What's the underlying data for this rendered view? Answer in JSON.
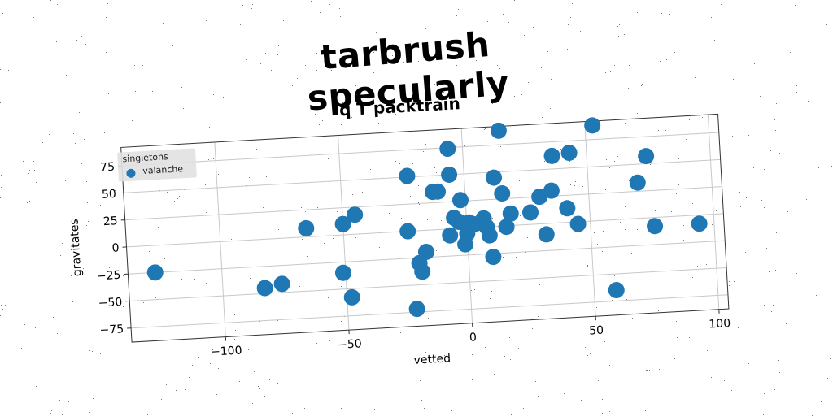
{
  "suptitle": "tarbrush specularly",
  "chart_data": {
    "type": "scatter",
    "title": "q T packtrain",
    "xlabel": "vetted",
    "ylabel": "gravitates",
    "xlim": [
      -138,
      104
    ],
    "ylim": [
      -88,
      92
    ],
    "xticks": [
      -100,
      -50,
      0,
      50,
      100
    ],
    "yticks": [
      -75,
      -50,
      -25,
      0,
      25,
      50,
      75
    ],
    "grid": true,
    "legend_title": "singletons",
    "legend_position": "top-left",
    "color": "#1f77b4",
    "series": [
      {
        "name": "valanche",
        "points": [
          [
            -127,
            -25
          ],
          [
            -83,
            -45
          ],
          [
            -76,
            -42
          ],
          [
            -65,
            8
          ],
          [
            -50,
            10
          ],
          [
            -45,
            18
          ],
          [
            -51,
            -35
          ],
          [
            -48,
            -58
          ],
          [
            -22,
            -72
          ],
          [
            -24,
            0
          ],
          [
            -23,
            51
          ],
          [
            -13,
            35
          ],
          [
            -11,
            35
          ],
          [
            -17,
            -20
          ],
          [
            -20,
            -30
          ],
          [
            -19,
            -38
          ],
          [
            -6,
            74
          ],
          [
            -6,
            50
          ],
          [
            -2,
            26
          ],
          [
            -7,
            -6
          ],
          [
            -5,
            10
          ],
          [
            -3,
            6
          ],
          [
            -1,
            -15
          ],
          [
            0,
            -5
          ],
          [
            1,
            5
          ],
          [
            3,
            3
          ],
          [
            7,
            8
          ],
          [
            8,
            0
          ],
          [
            9,
            -8
          ],
          [
            10,
            -28
          ],
          [
            12,
            45
          ],
          [
            15,
            30
          ],
          [
            16,
            -1
          ],
          [
            18,
            11
          ],
          [
            15,
            88
          ],
          [
            26,
            11
          ],
          [
            30,
            25
          ],
          [
            32,
            -10
          ],
          [
            35,
            30
          ],
          [
            36,
            62
          ],
          [
            41,
            13
          ],
          [
            43,
            64
          ],
          [
            45,
            -2
          ],
          [
            53,
            88
          ],
          [
            59,
            -65
          ],
          [
            70,
            33
          ],
          [
            74,
            57
          ],
          [
            76,
            -8
          ],
          [
            94,
            -8
          ]
        ]
      }
    ]
  }
}
